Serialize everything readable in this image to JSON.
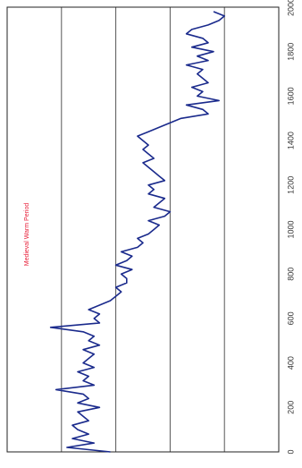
{
  "chart_data": {
    "type": "line",
    "orientation": "rotated-90",
    "title": "",
    "xlabel": "",
    "ylabel": "",
    "x_ticks": [
      "0",
      "200",
      "400",
      "600",
      "800",
      "1000",
      "1200",
      "1400",
      "1600",
      "1800",
      "2000"
    ],
    "xlim": [
      0,
      2000
    ],
    "ylim": [
      0,
      5
    ],
    "grid": true,
    "legend": "none",
    "annotation": "Medieval Warm Period",
    "colors": {
      "line": "#1a2a8c",
      "annotation": "#e8203a",
      "grid": "#555555"
    },
    "series": [
      {
        "x": [
          0,
          20,
          40,
          60,
          80,
          100,
          120,
          140,
          160,
          180,
          200,
          220,
          240,
          260,
          280,
          300,
          320,
          340,
          360,
          380,
          400,
          420,
          440,
          460,
          480,
          500,
          520,
          540,
          560,
          580,
          600,
          620,
          640,
          660,
          680,
          700,
          720,
          740,
          760,
          780,
          800,
          820,
          840,
          860,
          880,
          900,
          920,
          940,
          960,
          980,
          1000,
          1020,
          1040,
          1060,
          1080,
          1100,
          1120,
          1140,
          1160,
          1180,
          1200,
          1220,
          1240,
          1260,
          1280,
          1300,
          1320,
          1340,
          1360,
          1380,
          1400,
          1420,
          1440,
          1460,
          1480,
          1500,
          1520,
          1540,
          1560,
          1580,
          1600,
          1620,
          1640,
          1660,
          1680,
          1700,
          1720,
          1740,
          1760,
          1780,
          1800,
          1820,
          1840,
          1860,
          1880,
          1900,
          1920,
          1940,
          1960,
          1980
        ],
        "values": [
          1.9,
          1.1,
          1.6,
          1.2,
          1.5,
          1.3,
          1.2,
          1.5,
          1.4,
          1.3,
          1.7,
          1.3,
          1.5,
          1.4,
          0.9,
          1.6,
          1.4,
          1.5,
          1.3,
          1.6,
          1.4,
          1.5,
          1.6,
          1.4,
          1.7,
          1.5,
          1.6,
          1.4,
          0.8,
          1.7,
          1.6,
          1.7,
          1.5,
          1.7,
          1.9,
          2.0,
          2.1,
          2.0,
          2.2,
          2.2,
          2.1,
          2.3,
          2.0,
          2.2,
          2.3,
          2.1,
          2.4,
          2.5,
          2.4,
          2.6,
          2.7,
          2.8,
          2.6,
          2.9,
          3.0,
          2.7,
          2.8,
          2.9,
          2.6,
          2.7,
          2.6,
          2.9,
          2.8,
          2.7,
          2.6,
          2.5,
          2.7,
          2.6,
          2.5,
          2.6,
          2.5,
          2.4,
          2.6,
          2.8,
          3.0,
          3.2,
          3.7,
          3.6,
          3.3,
          3.9,
          3.5,
          3.6,
          3.4,
          3.7,
          3.6,
          3.5,
          3.6,
          3.3,
          3.7,
          3.5,
          3.8,
          3.4,
          3.7,
          3.6,
          3.3,
          3.4,
          3.7,
          3.9,
          4.0,
          3.8
        ]
      }
    ]
  }
}
